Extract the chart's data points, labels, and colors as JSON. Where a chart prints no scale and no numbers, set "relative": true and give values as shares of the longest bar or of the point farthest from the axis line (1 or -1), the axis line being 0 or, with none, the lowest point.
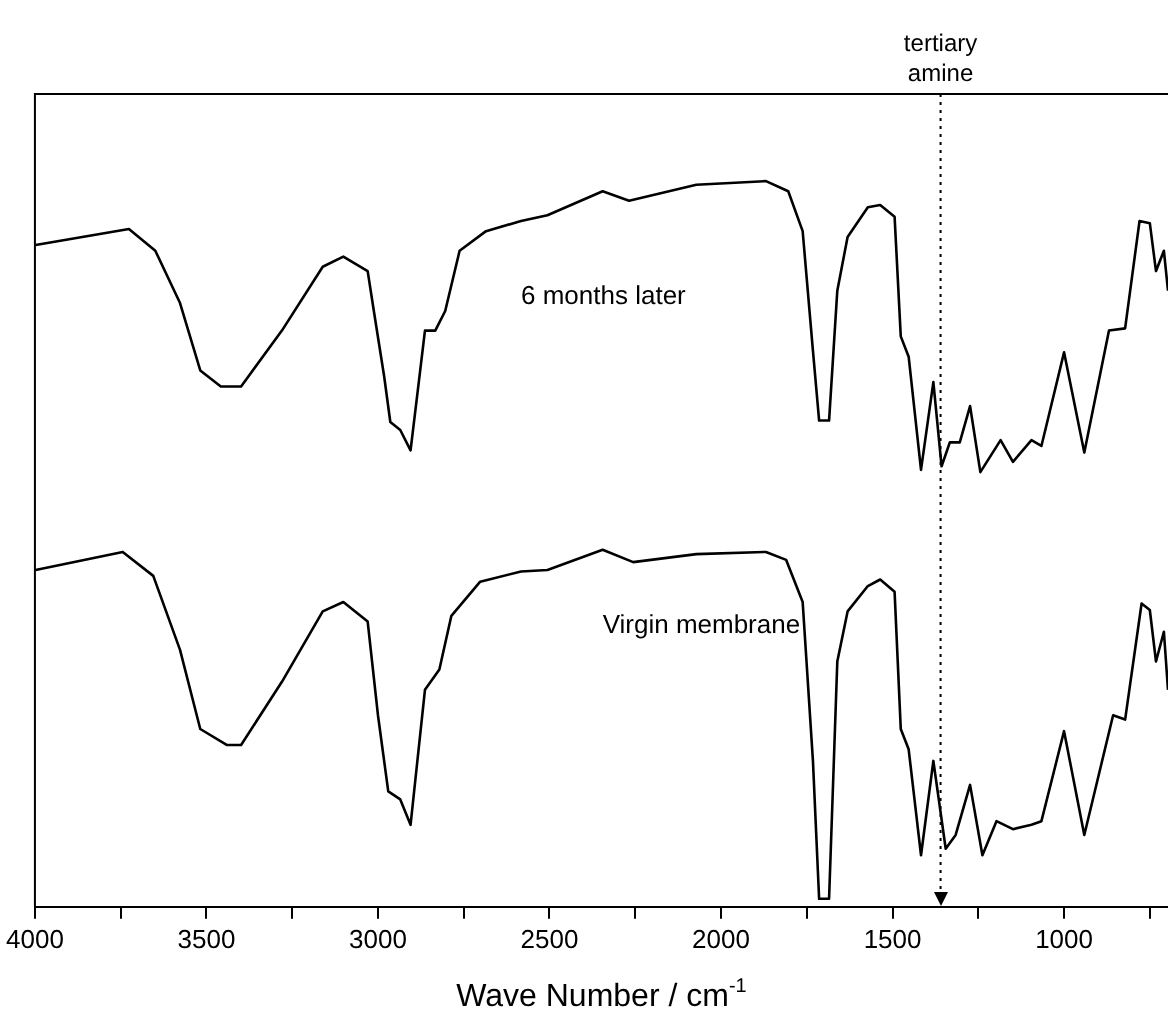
{
  "chart_data": {
    "type": "line",
    "relative": true,
    "xlabel": "Wave Number / cm$^{-1}$",
    "xlim": [
      4000,
      697
    ],
    "xticks": [
      4000,
      {
        "value": 3750,
        "label": null
      },
      3500,
      {
        "value": 3250,
        "label": null
      },
      3000,
      {
        "value": 2750,
        "label": null
      },
      2500,
      {
        "value": 2250,
        "label": null
      },
      2000,
      {
        "value": 1750,
        "label": null
      },
      1500,
      {
        "value": 1250,
        "label": null
      },
      1000,
      {
        "value": 750,
        "label": null
      }
    ],
    "grid": false,
    "legend": false,
    "marker": "none",
    "line_style": "solid",
    "ref_lines": [
      {
        "axis": "x",
        "value": 1360,
        "label": "tertiary amine",
        "line_style": "dotted",
        "color": "#000000"
      }
    ],
    "series": [
      {
        "name": "6 months later",
        "color": "#000000",
        "x": [
          3998,
          3726,
          3649,
          3577,
          3518,
          3458,
          3399,
          3280,
          3161,
          3101,
          3030,
          3012,
          2982,
          2964,
          2935,
          2905,
          2881,
          2863,
          2833,
          2804,
          2762,
          2685,
          2583,
          2506,
          2345,
          2268,
          2072,
          1869,
          1804,
          1762,
          1732,
          1714,
          1685,
          1661,
          1631,
          1572,
          1536,
          1494,
          1476,
          1453,
          1417,
          1381,
          1357,
          1333,
          1304,
          1274,
          1244,
          1185,
          1149,
          1095,
          1066,
          1000,
          941,
          869,
          822,
          780,
          750,
          732,
          709,
          697
        ],
        "values": [
          0.912,
          0.934,
          0.904,
          0.832,
          0.739,
          0.717,
          0.717,
          0.794,
          0.882,
          0.896,
          0.876,
          0.821,
          0.731,
          0.668,
          0.657,
          0.629,
          0.723,
          0.794,
          0.794,
          0.821,
          0.904,
          0.931,
          0.945,
          0.953,
          0.986,
          0.973,
          0.995,
          1,
          0.986,
          0.931,
          0.766,
          0.67,
          0.67,
          0.849,
          0.923,
          0.964,
          0.967,
          0.951,
          0.786,
          0.758,
          0.602,
          0.723,
          0.607,
          0.64,
          0.64,
          0.69,
          0.599,
          0.643,
          0.613,
          0.643,
          0.635,
          0.764,
          0.626,
          0.794,
          0.797,
          0.945,
          0.942,
          0.876,
          0.904,
          0.849
        ]
      },
      {
        "name": "Virgin membrane",
        "color": "#000000",
        "x": [
          3998,
          3744,
          3655,
          3577,
          3518,
          3441,
          3399,
          3280,
          3161,
          3101,
          3030,
          3000,
          2970,
          2935,
          2905,
          2863,
          2821,
          2786,
          2702,
          2583,
          2506,
          2345,
          2256,
          2072,
          1869,
          1810,
          1762,
          1732,
          1714,
          1685,
          1661,
          1631,
          1572,
          1536,
          1494,
          1476,
          1453,
          1417,
          1381,
          1345,
          1316,
          1274,
          1238,
          1197,
          1149,
          1095,
          1066,
          1000,
          941,
          857,
          822,
          774,
          750,
          732,
          709,
          697
        ],
        "values": [
          0.464,
          0.489,
          0.456,
          0.354,
          0.245,
          0.223,
          0.223,
          0.31,
          0.407,
          0.42,
          0.393,
          0.264,
          0.159,
          0.148,
          0.113,
          0.299,
          0.327,
          0.401,
          0.448,
          0.462,
          0.464,
          0.492,
          0.475,
          0.486,
          0.489,
          0.478,
          0.42,
          0.201,
          0.011,
          0.011,
          0.338,
          0.407,
          0.442,
          0.451,
          0.434,
          0.245,
          0.217,
          0.071,
          0.201,
          0.08,
          0.099,
          0.168,
          0.071,
          0.118,
          0.107,
          0.113,
          0.118,
          0.242,
          0.099,
          0.264,
          0.258,
          0.418,
          0.409,
          0.338,
          0.379,
          0.299
        ]
      }
    ]
  }
}
